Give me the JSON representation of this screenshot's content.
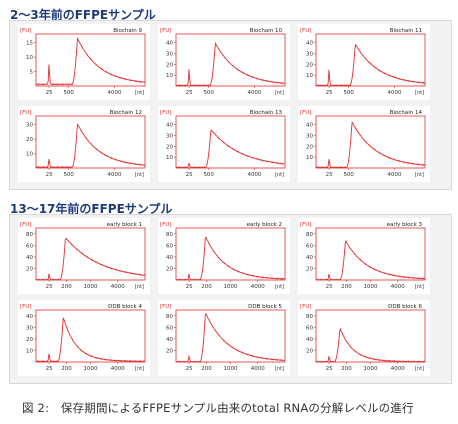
{
  "sections": [
    {
      "heading": "2～3年前のFFPEサンプル",
      "charts": [
        {
          "label": "Biochain 9",
          "yticks": [
            "5",
            "10",
            "15"
          ],
          "ymax": 18,
          "xticks": [
            "25",
            "500",
            "4000"
          ],
          "xunit": "[nt]",
          "yunit": "[FU]",
          "peak_x": 0.38,
          "peak_y": 16,
          "decay": 0.2,
          "marker_y": 7
        },
        {
          "label": "Biochain 10",
          "yticks": [
            "10",
            "20",
            "30",
            "40"
          ],
          "ymax": 48,
          "xticks": [
            "25",
            "500",
            "4000"
          ],
          "xunit": "[nt]",
          "yunit": "[FU]",
          "peak_x": 0.36,
          "peak_y": 39,
          "decay": 0.21,
          "marker_y": 15
        },
        {
          "label": "Biochain 11",
          "yticks": [
            "10",
            "20",
            "30",
            "40"
          ],
          "ymax": 48,
          "xticks": [
            "25",
            "500",
            "4000"
          ],
          "xunit": "[nt]",
          "yunit": "[FU]",
          "peak_x": 0.36,
          "peak_y": 38,
          "decay": 0.22,
          "marker_y": 15
        },
        {
          "label": "Biochain 12",
          "yticks": [
            "10",
            "20",
            "30"
          ],
          "ymax": 36,
          "xticks": [
            "25",
            "500",
            "4000"
          ],
          "xunit": "[nt]",
          "yunit": "[FU]",
          "peak_x": 0.38,
          "peak_y": 30,
          "decay": 0.2,
          "marker_y": 6
        },
        {
          "label": "Biochain 13",
          "yticks": [
            "10",
            "20",
            "30",
            "40"
          ],
          "ymax": 48,
          "xticks": [
            "25",
            "500",
            "4000"
          ],
          "xunit": "[nt]",
          "yunit": "[FU]",
          "peak_x": 0.32,
          "peak_y": 35,
          "decay": 0.28,
          "marker_y": 4
        },
        {
          "label": "Biochain 14",
          "yticks": [
            "10",
            "20",
            "30",
            "40"
          ],
          "ymax": 48,
          "xticks": [
            "25",
            "500",
            "4000"
          ],
          "xunit": "[nt]",
          "yunit": "[FU]",
          "peak_x": 0.33,
          "peak_y": 42,
          "decay": 0.22,
          "marker_y": 8
        }
      ]
    },
    {
      "heading": "13～17年前のFFPEサンプル",
      "charts": [
        {
          "label": "early block 1",
          "yticks": [
            "20",
            "40",
            "60",
            "80"
          ],
          "ymax": 90,
          "xticks": [
            "25",
            "200",
            "1000",
            "4000"
          ],
          "xunit": "[nt]",
          "yunit": "[FU]",
          "peak_x": 0.27,
          "peak_y": 73,
          "decay": 0.32,
          "marker_y": 10
        },
        {
          "label": "early block 2",
          "yticks": [
            "20",
            "40",
            "60",
            "80"
          ],
          "ymax": 90,
          "xticks": [
            "25",
            "200",
            "1000",
            "4000"
          ],
          "xunit": "[nt]",
          "yunit": "[FU]",
          "peak_x": 0.27,
          "peak_y": 75,
          "decay": 0.18,
          "marker_y": 10
        },
        {
          "label": "early block 3",
          "yticks": [
            "20",
            "40",
            "60",
            "80"
          ],
          "ymax": 90,
          "xticks": [
            "25",
            "200",
            "1000",
            "4000"
          ],
          "xunit": "[nt]",
          "yunit": "[FU]",
          "peak_x": 0.27,
          "peak_y": 68,
          "decay": 0.2,
          "marker_y": 10
        },
        {
          "label": "DDB block 4",
          "yticks": [
            "10",
            "20",
            "30",
            "40"
          ],
          "ymax": 45,
          "xticks": [
            "25",
            "200",
            "1000",
            "4000"
          ],
          "xunit": "[nt]",
          "yunit": "[FU]",
          "peak_x": 0.25,
          "peak_y": 38,
          "decay": 0.12,
          "marker_y": 7
        },
        {
          "label": "DDB block 5",
          "yticks": [
            "20",
            "40",
            "60",
            "80"
          ],
          "ymax": 90,
          "xticks": [
            "25",
            "200",
            "1000",
            "4000"
          ],
          "xunit": "[nt]",
          "yunit": "[FU]",
          "peak_x": 0.27,
          "peak_y": 85,
          "decay": 0.2,
          "marker_y": 10
        },
        {
          "label": "DDB block 6",
          "yticks": [
            "20",
            "40",
            "60",
            "80"
          ],
          "ymax": 90,
          "xticks": [
            "25",
            "200",
            "1000",
            "4000"
          ],
          "xunit": "[nt]",
          "yunit": "[FU]",
          "peak_x": 0.22,
          "peak_y": 58,
          "decay": 0.12,
          "marker_y": 10
        }
      ]
    }
  ],
  "caption": "図 2:　保存期間によるFFPEサンプル由来のtotal RNAの分解レベルの進行",
  "colors": {
    "trace": "#e03030",
    "axis": "#e03030",
    "heading": "#1f3b7a",
    "panel": "#f2f2f2"
  },
  "chart_data": [
    {
      "type": "line",
      "title": "Biochain 9",
      "xlabel": "[nt]",
      "ylabel": "[FU]",
      "x_ticks": [
        "25",
        "500",
        "4000"
      ],
      "y_ticks": [
        5,
        10,
        15
      ],
      "peak_fu": 16
    },
    {
      "type": "line",
      "title": "Biochain 10",
      "xlabel": "[nt]",
      "ylabel": "[FU]",
      "x_ticks": [
        "25",
        "500",
        "4000"
      ],
      "y_ticks": [
        10,
        20,
        30,
        40
      ],
      "peak_fu": 39
    },
    {
      "type": "line",
      "title": "Biochain 11",
      "xlabel": "[nt]",
      "ylabel": "[FU]",
      "x_ticks": [
        "25",
        "500",
        "4000"
      ],
      "y_ticks": [
        10,
        20,
        30,
        40
      ],
      "peak_fu": 38
    },
    {
      "type": "line",
      "title": "Biochain 12",
      "xlabel": "[nt]",
      "ylabel": "[FU]",
      "x_ticks": [
        "25",
        "500",
        "4000"
      ],
      "y_ticks": [
        10,
        20,
        30
      ],
      "peak_fu": 30
    },
    {
      "type": "line",
      "title": "Biochain 13",
      "xlabel": "[nt]",
      "ylabel": "[FU]",
      "x_ticks": [
        "25",
        "500",
        "4000"
      ],
      "y_ticks": [
        10,
        20,
        30,
        40
      ],
      "peak_fu": 35
    },
    {
      "type": "line",
      "title": "Biochain 14",
      "xlabel": "[nt]",
      "ylabel": "[FU]",
      "x_ticks": [
        "25",
        "500",
        "4000"
      ],
      "y_ticks": [
        10,
        20,
        30,
        40
      ],
      "peak_fu": 42
    },
    {
      "type": "line",
      "title": "early block 1",
      "xlabel": "[nt]",
      "ylabel": "[FU]",
      "x_ticks": [
        "25",
        "200",
        "1000",
        "4000"
      ],
      "y_ticks": [
        20,
        40,
        60,
        80
      ],
      "peak_fu": 73
    },
    {
      "type": "line",
      "title": "early block 2",
      "xlabel": "[nt]",
      "ylabel": "[FU]",
      "x_ticks": [
        "25",
        "200",
        "1000",
        "4000"
      ],
      "y_ticks": [
        20,
        40,
        60,
        80
      ],
      "peak_fu": 75
    },
    {
      "type": "line",
      "title": "early block 3",
      "xlabel": "[nt]",
      "ylabel": "[FU]",
      "x_ticks": [
        "25",
        "200",
        "1000",
        "4000"
      ],
      "y_ticks": [
        20,
        40,
        60,
        80
      ],
      "peak_fu": 68
    },
    {
      "type": "line",
      "title": "DDB block 4",
      "xlabel": "[nt]",
      "ylabel": "[FU]",
      "x_ticks": [
        "25",
        "200",
        "1000",
        "4000"
      ],
      "y_ticks": [
        10,
        20,
        30,
        40
      ],
      "peak_fu": 38
    },
    {
      "type": "line",
      "title": "DDB block 5",
      "xlabel": "[nt]",
      "ylabel": "[FU]",
      "x_ticks": [
        "25",
        "200",
        "1000",
        "4000"
      ],
      "y_ticks": [
        20,
        40,
        60,
        80
      ],
      "peak_fu": 85
    },
    {
      "type": "line",
      "title": "DDB block 6",
      "xlabel": "[nt]",
      "ylabel": "[FU]",
      "x_ticks": [
        "25",
        "200",
        "1000",
        "4000"
      ],
      "y_ticks": [
        20,
        40,
        60,
        80
      ],
      "peak_fu": 58
    }
  ]
}
